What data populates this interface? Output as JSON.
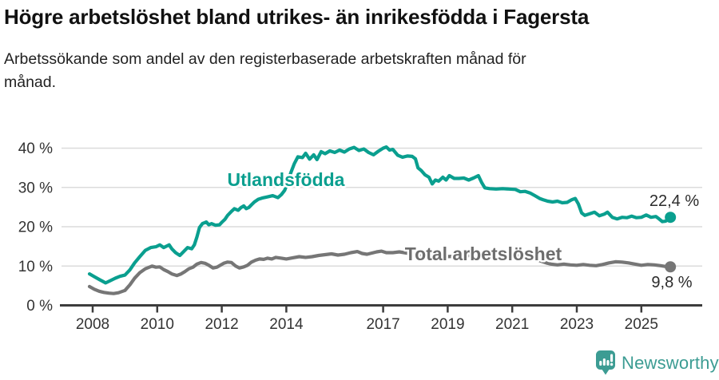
{
  "header": {
    "title": "Högre arbetslöshet bland utrikes- än inrikesfödda i Fagersta",
    "subtitle": "Arbetssökande som andel av den registerbaserade arbetskraften månad för månad.",
    "subtitle_lines": [
      "Arbetssökande som andel av den registerbaserade arbetskraften månad för",
      "månad."
    ]
  },
  "chart_data": {
    "type": "line",
    "title": "Högre arbetslöshet bland utrikes- än inrikesfödda i Fagersta",
    "subtitle": "Arbetssökande som andel av den registerbaserade arbetskraften månad för månad.",
    "xlabel": "",
    "ylabel": "",
    "ylim": [
      0,
      43
    ],
    "xlim": [
      2007.0,
      2026.6
    ],
    "grid": "horizontal",
    "yticks": [
      "0 %",
      "10 %",
      "20 %",
      "30 %",
      "40 %"
    ],
    "ytick_values": [
      0,
      10,
      20,
      30,
      40
    ],
    "xticks": [
      2008,
      2010,
      2012,
      2014,
      2017,
      2019,
      2021,
      2023,
      2025
    ],
    "colors": {
      "utlandsfodda": "#0a9f8f",
      "total": "#767676",
      "grid": "#dbdbdb",
      "axis": "#3c3c3c",
      "tick_text": "#333333",
      "logo_teal": "#3c9c93"
    },
    "series": [
      {
        "name": "Utlandsfödda",
        "color": "#0a9f8f",
        "end_label": "22,4 %",
        "end_value": 22.4,
        "points": [
          [
            2007.9,
            8.0
          ],
          [
            2008.05,
            7.3
          ],
          [
            2008.2,
            6.6
          ],
          [
            2008.4,
            5.7
          ],
          [
            2008.55,
            6.3
          ],
          [
            2008.7,
            6.9
          ],
          [
            2008.85,
            7.4
          ],
          [
            2009.0,
            7.7
          ],
          [
            2009.15,
            9.0
          ],
          [
            2009.3,
            10.8
          ],
          [
            2009.46,
            12.4
          ],
          [
            2009.63,
            14.0
          ],
          [
            2009.8,
            14.7
          ],
          [
            2009.96,
            14.9
          ],
          [
            2010.08,
            15.4
          ],
          [
            2010.2,
            14.7
          ],
          [
            2010.37,
            15.4
          ],
          [
            2010.45,
            14.4
          ],
          [
            2010.57,
            13.4
          ],
          [
            2010.7,
            12.7
          ],
          [
            2010.82,
            13.7
          ],
          [
            2010.94,
            14.7
          ],
          [
            2011.07,
            14.4
          ],
          [
            2011.15,
            15.4
          ],
          [
            2011.23,
            17.4
          ],
          [
            2011.31,
            19.8
          ],
          [
            2011.4,
            20.8
          ],
          [
            2011.52,
            21.2
          ],
          [
            2011.6,
            20.5
          ],
          [
            2011.68,
            20.8
          ],
          [
            2011.8,
            20.4
          ],
          [
            2011.93,
            20.5
          ],
          [
            2012.01,
            21.2
          ],
          [
            2012.1,
            21.9
          ],
          [
            2012.18,
            22.9
          ],
          [
            2012.3,
            23.9
          ],
          [
            2012.39,
            24.6
          ],
          [
            2012.51,
            24.2
          ],
          [
            2012.6,
            24.9
          ],
          [
            2012.68,
            25.3
          ],
          [
            2012.76,
            24.6
          ],
          [
            2012.84,
            24.9
          ],
          [
            2012.92,
            25.6
          ],
          [
            2013.01,
            26.3
          ],
          [
            2013.13,
            27.0
          ],
          [
            2013.25,
            27.3
          ],
          [
            2013.42,
            27.6
          ],
          [
            2013.58,
            27.9
          ],
          [
            2013.74,
            27.4
          ],
          [
            2013.85,
            28.2
          ],
          [
            2013.95,
            29.3
          ],
          [
            2014.05,
            31.5
          ],
          [
            2014.15,
            34.0
          ],
          [
            2014.25,
            36.1
          ],
          [
            2014.36,
            37.8
          ],
          [
            2014.5,
            37.6
          ],
          [
            2014.6,
            38.7
          ],
          [
            2014.72,
            37.2
          ],
          [
            2014.85,
            38.3
          ],
          [
            2014.95,
            37.1
          ],
          [
            2015.08,
            39.1
          ],
          [
            2015.2,
            38.6
          ],
          [
            2015.35,
            39.3
          ],
          [
            2015.5,
            38.9
          ],
          [
            2015.65,
            39.5
          ],
          [
            2015.8,
            39.0
          ],
          [
            2015.95,
            39.8
          ],
          [
            2016.1,
            40.2
          ],
          [
            2016.25,
            39.4
          ],
          [
            2016.4,
            39.8
          ],
          [
            2016.55,
            38.9
          ],
          [
            2016.7,
            38.3
          ],
          [
            2016.85,
            39.2
          ],
          [
            2017.0,
            40.0
          ],
          [
            2017.1,
            40.3
          ],
          [
            2017.2,
            39.5
          ],
          [
            2017.3,
            39.7
          ],
          [
            2017.45,
            38.2
          ],
          [
            2017.6,
            37.7
          ],
          [
            2017.75,
            38.0
          ],
          [
            2017.9,
            37.9
          ],
          [
            2018.0,
            37.3
          ],
          [
            2018.08,
            35.0
          ],
          [
            2018.18,
            34.3
          ],
          [
            2018.3,
            33.2
          ],
          [
            2018.42,
            32.6
          ],
          [
            2018.52,
            30.9
          ],
          [
            2018.62,
            31.9
          ],
          [
            2018.72,
            31.6
          ],
          [
            2018.85,
            32.6
          ],
          [
            2018.95,
            31.9
          ],
          [
            2019.05,
            33.0
          ],
          [
            2019.2,
            32.3
          ],
          [
            2019.35,
            32.3
          ],
          [
            2019.5,
            32.4
          ],
          [
            2019.65,
            31.9
          ],
          [
            2019.8,
            32.4
          ],
          [
            2019.95,
            33.0
          ],
          [
            2020.05,
            31.3
          ],
          [
            2020.15,
            29.9
          ],
          [
            2020.3,
            29.7
          ],
          [
            2020.5,
            29.6
          ],
          [
            2020.7,
            29.7
          ],
          [
            2020.9,
            29.6
          ],
          [
            2021.1,
            29.5
          ],
          [
            2021.25,
            28.9
          ],
          [
            2021.4,
            29.0
          ],
          [
            2021.55,
            28.6
          ],
          [
            2021.7,
            27.9
          ],
          [
            2021.85,
            27.2
          ],
          [
            2021.95,
            26.9
          ],
          [
            2022.1,
            26.5
          ],
          [
            2022.25,
            26.3
          ],
          [
            2022.4,
            26.5
          ],
          [
            2022.55,
            26.1
          ],
          [
            2022.7,
            26.2
          ],
          [
            2022.85,
            26.9
          ],
          [
            2022.95,
            27.2
          ],
          [
            2023.05,
            25.8
          ],
          [
            2023.15,
            23.5
          ],
          [
            2023.25,
            22.9
          ],
          [
            2023.4,
            23.3
          ],
          [
            2023.55,
            23.7
          ],
          [
            2023.7,
            22.8
          ],
          [
            2023.85,
            23.2
          ],
          [
            2023.95,
            23.7
          ],
          [
            2024.1,
            22.4
          ],
          [
            2024.25,
            22.0
          ],
          [
            2024.4,
            22.4
          ],
          [
            2024.55,
            22.3
          ],
          [
            2024.7,
            22.7
          ],
          [
            2024.85,
            22.3
          ],
          [
            2025.0,
            22.4
          ],
          [
            2025.15,
            23.0
          ],
          [
            2025.3,
            22.4
          ],
          [
            2025.45,
            22.6
          ],
          [
            2025.55,
            22.0
          ],
          [
            2025.65,
            21.3
          ],
          [
            2025.75,
            21.4
          ],
          [
            2025.9,
            22.4
          ]
        ]
      },
      {
        "name": "Total arbetslöshet",
        "color": "#767676",
        "end_label": "9,8 %",
        "end_value": 9.8,
        "points": [
          [
            2007.9,
            4.8
          ],
          [
            2008.05,
            4.1
          ],
          [
            2008.2,
            3.6
          ],
          [
            2008.35,
            3.3
          ],
          [
            2008.5,
            3.1
          ],
          [
            2008.65,
            3.0
          ],
          [
            2008.8,
            3.2
          ],
          [
            2009.0,
            3.8
          ],
          [
            2009.15,
            5.2
          ],
          [
            2009.3,
            6.9
          ],
          [
            2009.46,
            8.3
          ],
          [
            2009.63,
            9.3
          ],
          [
            2009.84,
            10.0
          ],
          [
            2009.96,
            9.7
          ],
          [
            2010.08,
            9.8
          ],
          [
            2010.2,
            9.1
          ],
          [
            2010.33,
            8.6
          ],
          [
            2010.45,
            8.0
          ],
          [
            2010.61,
            7.6
          ],
          [
            2010.74,
            8.0
          ],
          [
            2010.86,
            8.6
          ],
          [
            2010.98,
            9.3
          ],
          [
            2011.11,
            9.7
          ],
          [
            2011.23,
            10.5
          ],
          [
            2011.36,
            10.9
          ],
          [
            2011.48,
            10.7
          ],
          [
            2011.6,
            10.2
          ],
          [
            2011.73,
            9.5
          ],
          [
            2011.85,
            9.7
          ],
          [
            2011.93,
            10.1
          ],
          [
            2012.06,
            10.7
          ],
          [
            2012.18,
            11.0
          ],
          [
            2012.3,
            10.9
          ],
          [
            2012.43,
            10.0
          ],
          [
            2012.55,
            9.5
          ],
          [
            2012.68,
            9.8
          ],
          [
            2012.8,
            10.2
          ],
          [
            2012.92,
            11.0
          ],
          [
            2013.05,
            11.5
          ],
          [
            2013.17,
            11.8
          ],
          [
            2013.3,
            11.7
          ],
          [
            2013.42,
            12.0
          ],
          [
            2013.55,
            11.8
          ],
          [
            2013.67,
            12.2
          ],
          [
            2013.85,
            12.0
          ],
          [
            2014.0,
            11.8
          ],
          [
            2014.2,
            12.1
          ],
          [
            2014.4,
            12.4
          ],
          [
            2014.6,
            12.2
          ],
          [
            2014.8,
            12.4
          ],
          [
            2015.0,
            12.7
          ],
          [
            2015.2,
            12.9
          ],
          [
            2015.4,
            13.1
          ],
          [
            2015.6,
            12.8
          ],
          [
            2015.8,
            13.0
          ],
          [
            2016.0,
            13.4
          ],
          [
            2016.2,
            13.7
          ],
          [
            2016.35,
            13.2
          ],
          [
            2016.5,
            13.0
          ],
          [
            2016.65,
            13.3
          ],
          [
            2016.8,
            13.6
          ],
          [
            2016.95,
            13.8
          ],
          [
            2017.1,
            13.4
          ],
          [
            2017.3,
            13.4
          ],
          [
            2017.5,
            13.6
          ],
          [
            2017.8,
            13.2
          ],
          [
            2018.1,
            12.9
          ],
          [
            2018.5,
            12.6
          ],
          [
            2018.9,
            12.4
          ],
          [
            2019.3,
            12.5
          ],
          [
            2019.7,
            12.7
          ],
          [
            2020.0,
            13.0
          ],
          [
            2020.3,
            13.6
          ],
          [
            2020.6,
            13.8
          ],
          [
            2020.9,
            13.4
          ],
          [
            2021.2,
            12.8
          ],
          [
            2021.5,
            12.2
          ],
          [
            2021.8,
            11.5
          ],
          [
            2022.05,
            10.8
          ],
          [
            2022.2,
            10.5
          ],
          [
            2022.4,
            10.3
          ],
          [
            2022.6,
            10.5
          ],
          [
            2022.8,
            10.3
          ],
          [
            2023.0,
            10.2
          ],
          [
            2023.2,
            10.4
          ],
          [
            2023.4,
            10.2
          ],
          [
            2023.6,
            10.1
          ],
          [
            2023.8,
            10.4
          ],
          [
            2024.0,
            10.8
          ],
          [
            2024.2,
            11.1
          ],
          [
            2024.4,
            11.0
          ],
          [
            2024.6,
            10.8
          ],
          [
            2024.8,
            10.5
          ],
          [
            2025.0,
            10.2
          ],
          [
            2025.2,
            10.4
          ],
          [
            2025.4,
            10.3
          ],
          [
            2025.6,
            10.1
          ],
          [
            2025.75,
            9.9
          ],
          [
            2025.9,
            9.8
          ]
        ]
      }
    ],
    "legend_position": "inline-labels"
  },
  "footer": {
    "brand": "Newsworthy"
  }
}
